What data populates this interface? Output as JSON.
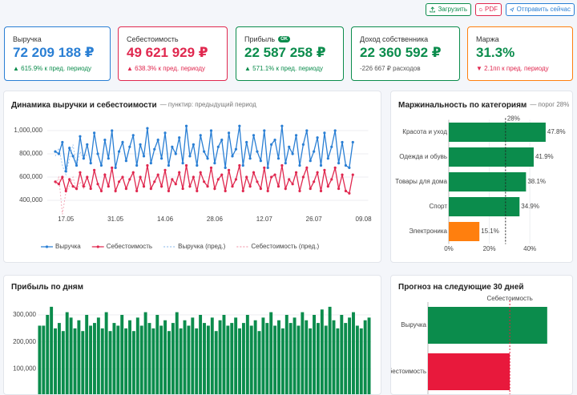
{
  "toolbar": {
    "buttons": [
      "Загрузить",
      "PDF",
      "Отправить сейчас"
    ]
  },
  "kpis": [
    {
      "label": "Выручка",
      "value": "72 209 188 ₽",
      "change": "▲ 615.9% к пред. периоду"
    },
    {
      "label": "Себестоимость",
      "value": "49 621 929 ₽",
      "change": "▲ 638.3% к пред. периоду"
    },
    {
      "label": "Прибыль",
      "badge": "OK",
      "value": "22 587 258 ₽",
      "change": "▲ 571.1% к пред. периоду"
    },
    {
      "label": "Доход собственника",
      "value": "22 360 592 ₽",
      "change": "-226 667 ₽ расходов"
    },
    {
      "label": "Маржа",
      "value": "31.3%",
      "change": "▼ 2.1пп к пред. периоду"
    }
  ],
  "chart_data": [
    {
      "type": "line",
      "title": "Динамика выручки и себестоимости",
      "subtitle": "— пунктир: предыдущий период",
      "categories": [
        null,
        null,
        null,
        "17.05",
        null,
        null,
        null,
        null,
        null,
        null,
        null,
        null,
        null,
        null,
        null,
        null,
        null,
        "31.05",
        null,
        null,
        null,
        null,
        null,
        null,
        null,
        null,
        null,
        null,
        null,
        null,
        null,
        "14.06",
        null,
        null,
        null,
        null,
        null,
        null,
        null,
        null,
        null,
        null,
        null,
        null,
        null,
        "28.06",
        null,
        null,
        null,
        null,
        null,
        null,
        null,
        null,
        null,
        null,
        null,
        null,
        null,
        "12.07",
        null,
        null,
        null,
        null,
        null,
        null,
        null,
        null,
        null,
        null,
        null,
        null,
        null,
        "26.07",
        null,
        null,
        null,
        null,
        null,
        null,
        null,
        null,
        null,
        null,
        null,
        null,
        null,
        "09.08"
      ],
      "series": [
        {
          "name": "Выручка",
          "color": "#2a7fd4",
          "dashed": false,
          "values": [
            820000,
            800000,
            900000,
            650000,
            850000,
            780000,
            700000,
            950000,
            760000,
            880000,
            720000,
            980000,
            800000,
            700000,
            920000,
            760000,
            1000000,
            680000,
            820000,
            900000,
            740000,
            860000,
            960000,
            700000,
            880000,
            780000,
            1020000,
            720000,
            840000,
            920000,
            760000,
            980000,
            700000,
            860000,
            800000,
            940000,
            720000,
            1040000,
            780000,
            880000,
            700000,
            960000,
            820000,
            760000,
            1000000,
            720000,
            860000,
            920000,
            680000,
            980000,
            780000,
            840000,
            1040000,
            700000,
            900000,
            760000,
            960000,
            820000,
            740000,
            1000000,
            680000,
            880000,
            920000,
            760000,
            1040000,
            720000,
            860000,
            800000,
            960000,
            700000,
            880000,
            1000000,
            740000,
            820000,
            940000,
            700000,
            980000,
            760000,
            860000,
            1000000,
            720000,
            900000,
            700000,
            680000,
            900000,
            null,
            null,
            null
          ]
        },
        {
          "name": "Себестоимость",
          "color": "#e0284f",
          "dashed": false,
          "values": [
            560000,
            540000,
            600000,
            480000,
            580000,
            520000,
            500000,
            640000,
            520000,
            600000,
            500000,
            660000,
            540000,
            480000,
            620000,
            520000,
            680000,
            480000,
            560000,
            600000,
            500000,
            580000,
            640000,
            480000,
            600000,
            520000,
            700000,
            500000,
            560000,
            620000,
            520000,
            660000,
            480000,
            580000,
            540000,
            640000,
            500000,
            700000,
            520000,
            600000,
            480000,
            640000,
            560000,
            520000,
            680000,
            500000,
            580000,
            620000,
            480000,
            660000,
            520000,
            580000,
            700000,
            480000,
            600000,
            520000,
            640000,
            560000,
            500000,
            680000,
            480000,
            600000,
            620000,
            520000,
            700000,
            500000,
            580000,
            540000,
            640000,
            480000,
            600000,
            680000,
            500000,
            560000,
            640000,
            480000,
            660000,
            520000,
            580000,
            680000,
            500000,
            620000,
            480000,
            460000,
            620000,
            null,
            null,
            null
          ]
        },
        {
          "name": "Выручка (пред.)",
          "color": "#9cc3ee",
          "dashed": true,
          "values": [
            780000,
            850000,
            700000,
            620000,
            760000,
            880000,
            690000,
            820000,
            750000,
            800000,
            null,
            null,
            null,
            null,
            null,
            null,
            null,
            null,
            null,
            null,
            null,
            null,
            null,
            null,
            null,
            null,
            null,
            null,
            null,
            null,
            null,
            null,
            null,
            null,
            null,
            null,
            null,
            null,
            null,
            null,
            null,
            null,
            null,
            null,
            null,
            null,
            null,
            null,
            null,
            null,
            null,
            null,
            null,
            null,
            null,
            null,
            null,
            null,
            null,
            null,
            null,
            null,
            null,
            null,
            null,
            null,
            null,
            null,
            null,
            null,
            null,
            null,
            null,
            null,
            null,
            null,
            null,
            null,
            null,
            null,
            null,
            null,
            null,
            null,
            null,
            null,
            null,
            null
          ]
        },
        {
          "name": "Себестоимость (пред.)",
          "color": "#f2a3b3",
          "dashed": true,
          "values": [
            540000,
            600000,
            280000,
            470000,
            520000,
            600000,
            480000,
            560000,
            500000,
            540000,
            null,
            null,
            null,
            null,
            null,
            null,
            null,
            null,
            null,
            null,
            null,
            null,
            null,
            null,
            null,
            null,
            null,
            null,
            null,
            null,
            null,
            null,
            null,
            null,
            null,
            null,
            null,
            null,
            null,
            null,
            null,
            null,
            null,
            null,
            null,
            null,
            null,
            null,
            null,
            null,
            null,
            null,
            null,
            null,
            null,
            null,
            null,
            null,
            null,
            null,
            null,
            null,
            null,
            null,
            null,
            null,
            null,
            null,
            null,
            null,
            null,
            null,
            null,
            null,
            null,
            null,
            null,
            null,
            null,
            null,
            null,
            null,
            null,
            null,
            null,
            null,
            null,
            null
          ]
        }
      ],
      "ylim": [
        250000,
        1080000
      ],
      "yticks": [
        {
          "value": 400000,
          "label": "400,000"
        },
        {
          "value": 600000,
          "label": "600,000"
        },
        {
          "value": 800000,
          "label": "800,000"
        },
        {
          "value": 1000000,
          "label": "1,000,000"
        }
      ],
      "grid": true,
      "legend": "bottom"
    },
    {
      "type": "barh",
      "title": "Маржинальность по категориям",
      "subtitle": "— порог 28%",
      "categories": [
        "Красота и уход",
        "Одежда и обувь",
        "Товары для дома",
        "Спорт",
        "Электроника"
      ],
      "values": [
        47.8,
        41.9,
        38.1,
        34.9,
        15.1
      ],
      "value_labels": [
        "47.8%",
        "41.9%",
        "38.1%",
        "34.9%",
        "15.1%"
      ],
      "colors": [
        "#0b8c4c",
        "#0b8c4c",
        "#0b8c4c",
        "#0b8c4c",
        "#ff7f0e"
      ],
      "xlim": [
        0,
        48
      ],
      "xticks": [
        {
          "value": 0,
          "label": "0%"
        },
        {
          "value": 20,
          "label": "20%"
        },
        {
          "value": 40,
          "label": "40%"
        }
      ],
      "reference": {
        "value": 28,
        "label": "28%",
        "color": "#222222"
      }
    },
    {
      "type": "bar",
      "title": "Прибыль по дням",
      "values": [
        260000,
        260000,
        300000,
        330000,
        250000,
        270000,
        240000,
        310000,
        290000,
        250000,
        280000,
        240000,
        300000,
        260000,
        270000,
        290000,
        250000,
        310000,
        240000,
        270000,
        260000,
        300000,
        250000,
        280000,
        240000,
        290000,
        260000,
        310000,
        270000,
        250000,
        300000,
        260000,
        280000,
        240000,
        270000,
        310000,
        250000,
        280000,
        260000,
        290000,
        250000,
        300000,
        270000,
        260000,
        290000,
        240000,
        280000,
        300000,
        260000,
        270000,
        290000,
        250000,
        270000,
        300000,
        260000,
        280000,
        240000,
        290000,
        270000,
        310000,
        260000,
        280000,
        250000,
        300000,
        270000,
        290000,
        260000,
        310000,
        280000,
        250000,
        300000,
        270000,
        320000,
        260000,
        330000,
        280000,
        250000,
        300000,
        270000,
        290000,
        310000,
        260000,
        250000,
        280000,
        290000
      ],
      "color": "#0b8c4c",
      "ylim": [
        0,
        345000
      ],
      "yticks": [
        {
          "value": 100000,
          "label": "100,000"
        },
        {
          "value": 200000,
          "label": "200,000"
        },
        {
          "value": 300000,
          "label": "300,000"
        }
      ],
      "grid": true
    },
    {
      "type": "barh",
      "title": "Прогноз на следующие 30 дней",
      "categories": [
        "Выручка",
        "Себестоимость"
      ],
      "values": [
        25500000,
        17500000
      ],
      "colors": [
        "#0b8c4c",
        "#e8193c"
      ],
      "xlim": [
        0,
        26900000
      ],
      "reference": {
        "value": 17500000,
        "label": "Себестоимость",
        "color": "#e8193c"
      }
    }
  ]
}
